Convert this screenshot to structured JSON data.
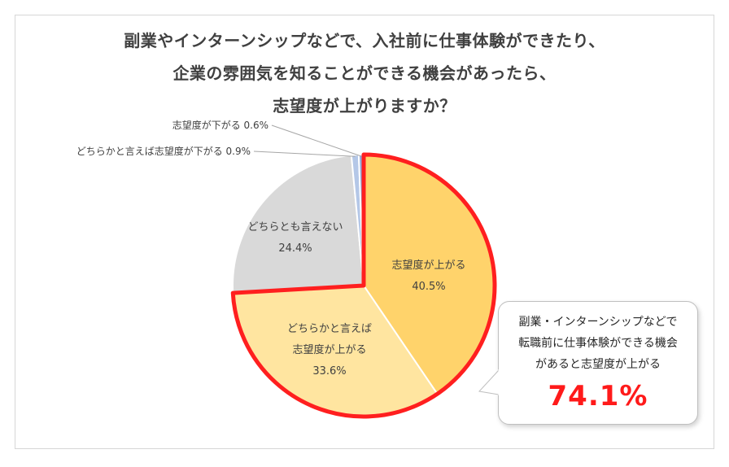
{
  "title_lines": [
    "副業やインターンシップなどで、入社前に仕事体験ができたり、",
    "企業の雰囲気を知ることができる機会があったら、",
    "志望度が上がりますか？"
  ],
  "chart_data": {
    "type": "pie",
    "title": "副業やインターンシップなどで、入社前に仕事体験ができたり、企業の雰囲気を知ることができる機会があったら、志望度が上がりますか？",
    "slices": [
      {
        "label": "志望度が上がる",
        "value": 40.5,
        "color": "#ffd36b"
      },
      {
        "label": "どちらかと言えば志望度が上がる",
        "value": 33.6,
        "color": "#ffe5a0"
      },
      {
        "label": "どちらとも言えない",
        "value": 24.4,
        "color": "#d9d9d9"
      },
      {
        "label": "どちらかと言えば志望度が下がる",
        "value": 0.9,
        "color": "#b4c7e7"
      },
      {
        "label": "志望度が下がる",
        "value": 0.6,
        "color": "#8faadc"
      }
    ],
    "highlight_color": "#ff1f1f"
  },
  "labels": {
    "s1": {
      "lines": [
        "志望度が上がる",
        "40.5%"
      ]
    },
    "s2": {
      "lines": [
        "どちらかと言えば",
        "志望度が上がる",
        "33.6%"
      ]
    },
    "s3": {
      "lines": [
        "どちらとも言えない",
        "24.4%"
      ]
    },
    "s4": "どちらかと言えば志望度が下がる 0.9%",
    "s5": "志望度が下がる 0.6%"
  },
  "callout": {
    "lines": [
      "副業・インターンシップなどで",
      "転職前に仕事体験ができる機会",
      "があると志望度が上がる"
    ],
    "value": "74.1%"
  }
}
